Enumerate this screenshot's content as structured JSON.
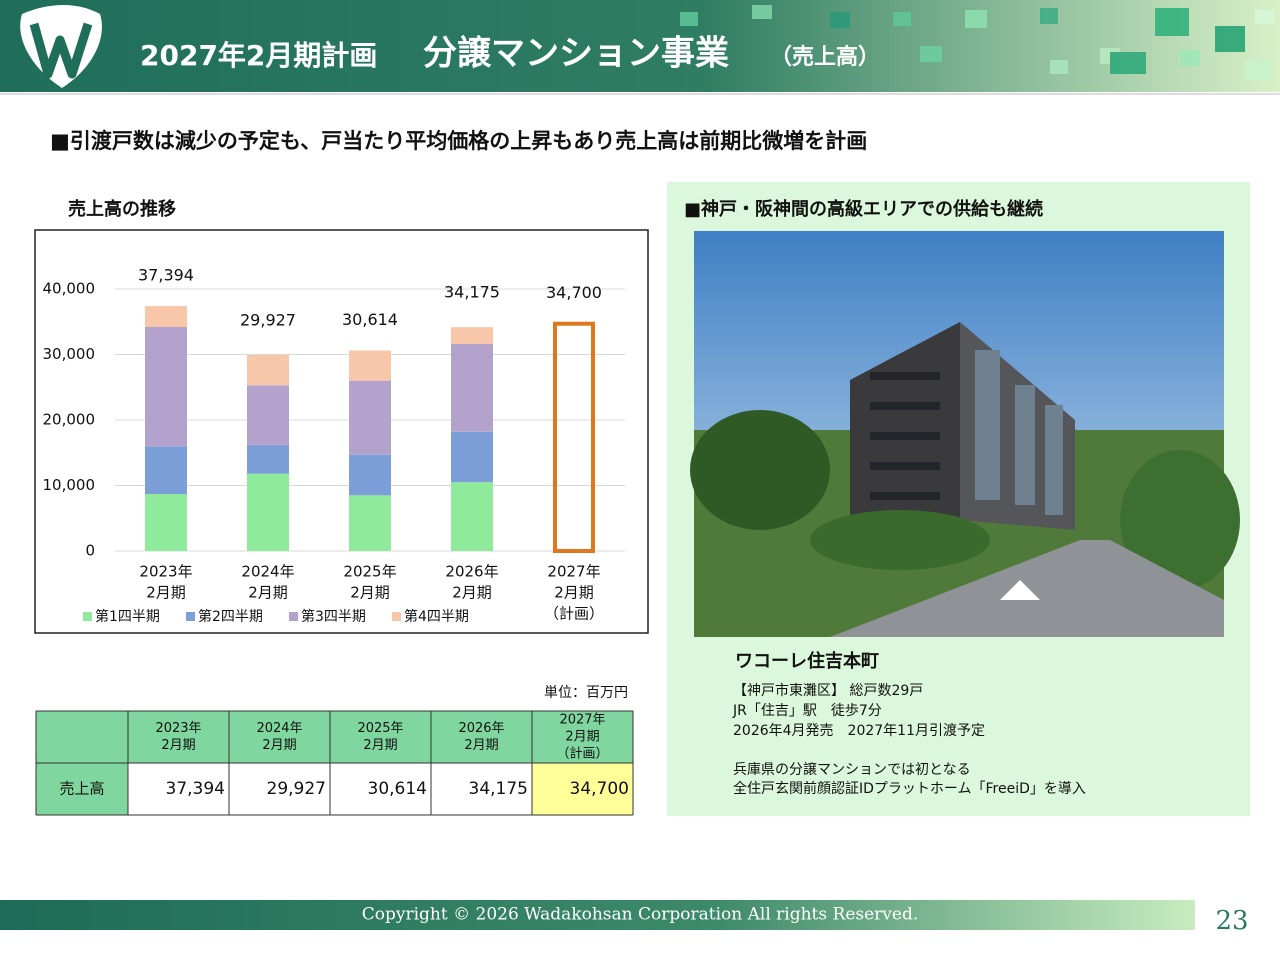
{
  "header": {
    "title": "2027年2月期計画",
    "subtitle": "分譲マンション事業",
    "note": "（売上高）"
  },
  "headline": "■引渡戸数は減少の予定も、戸当たり平均価格の上昇もあり売上高は前期比微増を計画",
  "chart_data": {
    "type": "stacked_bar",
    "title": "売上高の推移",
    "categories": [
      [
        "2023年",
        "2月期"
      ],
      [
        "2024年",
        "2月期"
      ],
      [
        "2025年",
        "2月期"
      ],
      [
        "2026年",
        "2月期"
      ],
      [
        "2027年",
        "2月期",
        "（計画）"
      ]
    ],
    "series": [
      {
        "name": "第1四半期",
        "color": "#90ea9c",
        "values": [
          8700,
          11800,
          8500,
          10500,
          null
        ]
      },
      {
        "name": "第2四半期",
        "color": "#7d9fd8",
        "values": [
          7300,
          4400,
          6200,
          7700,
          null
        ]
      },
      {
        "name": "第3四半期",
        "color": "#b3a2cb",
        "values": [
          18200,
          9100,
          11300,
          13400,
          null
        ]
      },
      {
        "name": "第4四半期",
        "color": "#f8c6a8",
        "values": [
          3194,
          4627,
          4614,
          2575,
          null
        ]
      }
    ],
    "totals": {
      "values": [
        37394,
        29927,
        30614,
        34175,
        34700
      ],
      "value_labels": [
        "37,394",
        "29,927",
        "30,614",
        "34,175",
        "34,700"
      ],
      "plan_color": "#e0761e"
    },
    "ylim": [
      0,
      40000
    ],
    "yticks": [
      0,
      {
        "value": 10000,
        "label": "10,000"
      },
      {
        "value": 20000,
        "label": "20,000"
      },
      {
        "value": 30000,
        "label": "30,000"
      },
      {
        "value": 40000,
        "label": "40,000"
      }
    ],
    "grid": true
  },
  "table": {
    "unit": "単位：百万円",
    "headers": [
      [
        "2023年",
        "2月期"
      ],
      [
        "2024年",
        "2月期"
      ],
      [
        "2025年",
        "2月期"
      ],
      [
        "2026年",
        "2月期"
      ],
      [
        "2027年",
        "2月期",
        "（計画）"
      ]
    ],
    "rows": [
      [
        "売上高",
        "37,394",
        "29,927",
        "30,614",
        "34,175",
        "34,700"
      ]
    ]
  },
  "panel": {
    "title": "■神戸・阪神間の高級エリアでの供給も継続",
    "property": "ワコーレ住吉本町",
    "details": [
      "【神戸市東灘区】 総戸数29戸",
      "JR「住吉」駅　徒歩7分",
      "2026年4月発売　2027年11月引渡予定"
    ],
    "notes": [
      "兵庫県の分譲マンションでは初となる",
      "全住戸玄関前顔認証IDプラットホーム「FreeiD」を導入"
    ]
  },
  "footer": {
    "copyright": "Copyright © 2026  Wadakohsan Corporation All rights Reserved.",
    "page": "23"
  }
}
